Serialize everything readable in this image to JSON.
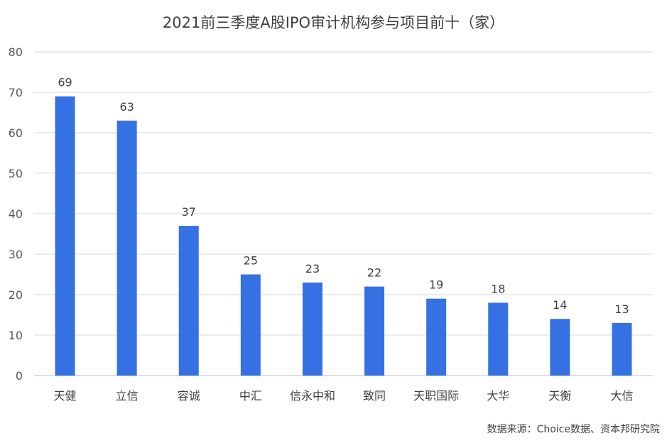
{
  "chart_data": {
    "type": "bar",
    "title": "2021前三季度A股IPO审计机构参与项目前十（家）",
    "categories": [
      "天健",
      "立信",
      "容诚",
      "中汇",
      "信永中和",
      "致同",
      "天职国际",
      "大华",
      "天衡",
      "大信"
    ],
    "values": [
      69,
      63,
      37,
      25,
      23,
      22,
      19,
      18,
      14,
      13
    ],
    "xlabel": "",
    "ylabel": "",
    "ylim": [
      0,
      80
    ],
    "yticks": [
      0,
      10,
      20,
      30,
      40,
      50,
      60,
      70,
      80
    ],
    "grid": true,
    "legend": "none",
    "data_labels": true,
    "bar_color": "#3671E3"
  },
  "source": "数据来源：Choice数据、资本邦研究院"
}
